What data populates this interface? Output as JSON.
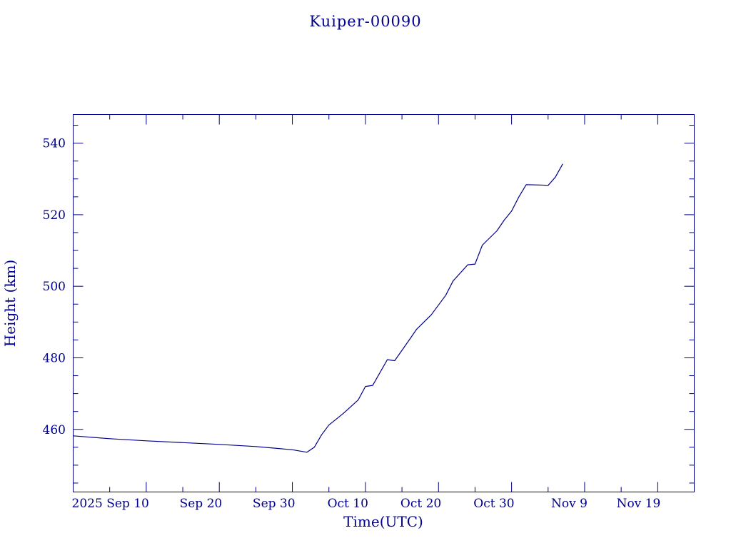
{
  "chart_data": {
    "type": "line",
    "title": "Kuiper-00090",
    "xlabel": "Time(UTC)",
    "ylabel": "Height (km)",
    "x_tick_labels": [
      "2025 Sep 10",
      "Sep 20",
      "Sep 30",
      "Oct 10",
      "Oct 20",
      "Oct 30",
      "Nov  9",
      "Nov 19"
    ],
    "x_tick_dates": [
      "2025-09-10",
      "2025-09-20",
      "2025-09-30",
      "2025-10-10",
      "2025-10-20",
      "2025-10-30",
      "2025-11-09",
      "2025-11-19"
    ],
    "y_tick_labels": [
      "460",
      "480",
      "500",
      "520",
      "540"
    ],
    "xlim": [
      "2025-08-31",
      "2025-11-24"
    ],
    "ylim": [
      442.5,
      548
    ],
    "y_major_ticks": [
      460,
      480,
      500,
      520,
      540
    ],
    "y_minor_step": 5,
    "grid": false,
    "line_color": "#00008b",
    "series": [
      {
        "x": [
          "2025-08-31",
          "2025-09-05",
          "2025-09-10",
          "2025-09-15",
          "2025-09-20",
          "2025-09-25",
          "2025-09-30",
          "2025-10-02",
          "2025-10-03",
          "2025-10-04",
          "2025-10-05",
          "2025-10-07",
          "2025-10-09",
          "2025-10-10",
          "2025-10-11",
          "2025-10-13",
          "2025-10-14",
          "2025-10-16",
          "2025-10-17",
          "2025-10-19",
          "2025-10-21",
          "2025-10-22",
          "2025-10-24",
          "2025-10-25",
          "2025-10-26",
          "2025-10-28",
          "2025-10-29",
          "2025-10-30",
          "2025-10-31",
          "2025-11-01",
          "2025-11-03",
          "2025-11-04",
          "2025-11-05",
          "2025-11-06"
        ],
        "y": [
          458.2,
          457.4,
          456.8,
          456.3,
          455.8,
          455.2,
          454.3,
          453.6,
          455.0,
          458.5,
          461.2,
          464.5,
          468.2,
          472.0,
          472.3,
          479.5,
          479.2,
          485.0,
          488.0,
          492.0,
          497.5,
          501.5,
          506.0,
          506.2,
          511.5,
          515.5,
          518.5,
          521.0,
          525.0,
          528.4,
          528.3,
          528.2,
          530.5,
          534.2
        ]
      }
    ]
  }
}
